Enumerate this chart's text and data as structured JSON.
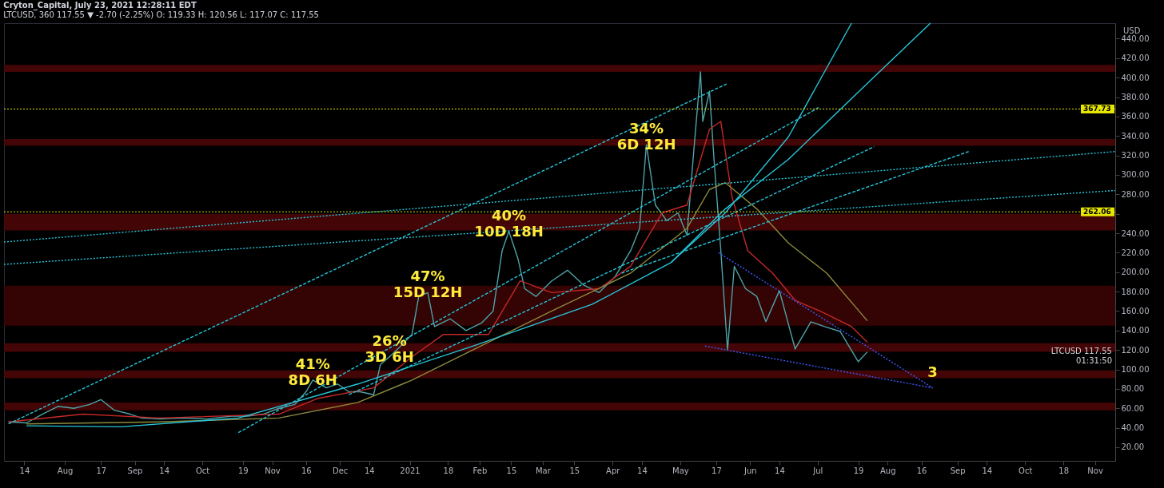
{
  "chart_data": {
    "type": "line",
    "title": "Cryton_Capital, July 23, 2021 12:28:11 EDT",
    "subtitle": "LTCUSD, 360 117.55 ▼ -2.70 (-2.25%) O: 119.33 H: 120.56 L: 117.07 C: 117.55",
    "xlim": [
      "2020-07-05",
      "2021-11-10"
    ],
    "xticks": [
      {
        "value": "2020-07-14",
        "label": "14"
      },
      {
        "value": "2020-08-01",
        "label": "Aug"
      },
      {
        "value": "2020-08-17",
        "label": "17"
      },
      {
        "value": "2020-09-01",
        "label": "Sep"
      },
      {
        "value": "2020-09-14",
        "label": "14"
      },
      {
        "value": "2020-10-01",
        "label": "Oct"
      },
      {
        "value": "2020-10-19",
        "label": "19"
      },
      {
        "value": "2020-11-01",
        "label": "Nov"
      },
      {
        "value": "2020-11-16",
        "label": "16"
      },
      {
        "value": "2020-12-01",
        "label": "Dec"
      },
      {
        "value": "2020-12-14",
        "label": "14"
      },
      {
        "value": "2021-01-01",
        "label": "2021"
      },
      {
        "value": "2021-01-18",
        "label": "18"
      },
      {
        "value": "2021-02-01",
        "label": "Feb"
      },
      {
        "value": "2021-02-15",
        "label": "15"
      },
      {
        "value": "2021-03-01",
        "label": "Mar"
      },
      {
        "value": "2021-03-15",
        "label": "15"
      },
      {
        "value": "2021-04-01",
        "label": "Apr"
      },
      {
        "value": "2021-04-14",
        "label": "14"
      },
      {
        "value": "2021-05-01",
        "label": "May"
      },
      {
        "value": "2021-05-17",
        "label": "17"
      },
      {
        "value": "2021-06-01",
        "label": "Jun"
      },
      {
        "value": "2021-06-14",
        "label": "14"
      },
      {
        "value": "2021-07-01",
        "label": "Jul"
      },
      {
        "value": "2021-07-19",
        "label": "19"
      },
      {
        "value": "2021-08-01",
        "label": "Aug"
      },
      {
        "value": "2021-08-16",
        "label": "16"
      },
      {
        "value": "2021-09-01",
        "label": "Sep"
      },
      {
        "value": "2021-09-14",
        "label": "14"
      },
      {
        "value": "2021-10-01",
        "label": "Oct"
      },
      {
        "value": "2021-10-18",
        "label": "18"
      },
      {
        "value": "2021-11-01",
        "label": "Nov"
      }
    ],
    "ylim": [
      6,
      456
    ],
    "yticks": [
      {
        "value": 20,
        "label": "20.00"
      },
      {
        "value": 40,
        "label": "40.00"
      },
      {
        "value": 60,
        "label": "60.00"
      },
      {
        "value": 80,
        "label": "80.00"
      },
      {
        "value": 100,
        "label": "100.00"
      },
      {
        "value": 120,
        "label": "120.00"
      },
      {
        "value": 140,
        "label": "140.00"
      },
      {
        "value": 160,
        "label": "160.00"
      },
      {
        "value": 180,
        "label": "180.00"
      },
      {
        "value": 200,
        "label": "200.00"
      },
      {
        "value": 220,
        "label": "220.00"
      },
      {
        "value": 240,
        "label": "240.00"
      },
      {
        "value": 260,
        "label": null
      },
      {
        "value": 280,
        "label": "280.00"
      },
      {
        "value": 300,
        "label": "300.00"
      },
      {
        "value": 320,
        "label": "320.00"
      },
      {
        "value": 340,
        "label": "340.00"
      },
      {
        "value": 360,
        "label": "360.00"
      },
      {
        "value": 380,
        "label": "380.00"
      },
      {
        "value": 400,
        "label": "400.00"
      },
      {
        "value": 420,
        "label": "420.00"
      },
      {
        "value": 440,
        "label": "440.00"
      }
    ],
    "bands": [
      {
        "axis": "y",
        "from": 406,
        "to": 413,
        "color": "#4a0505"
      },
      {
        "axis": "y",
        "from": 330,
        "to": 337,
        "color": "#4a0505"
      },
      {
        "axis": "y",
        "from": 243,
        "to": 260,
        "color": "#4a0505"
      },
      {
        "axis": "y",
        "from": 145,
        "to": 186,
        "color": "#3a0303"
      },
      {
        "axis": "y",
        "from": 118,
        "to": 127,
        "color": "#4a0505"
      },
      {
        "axis": "y",
        "from": 91,
        "to": 99,
        "color": "#4a0505"
      },
      {
        "axis": "y",
        "from": 58,
        "to": 66,
        "color": "#4a0505"
      }
    ],
    "ref_lines": [
      {
        "axis": "y",
        "value": 367.73,
        "label": "367.73",
        "color": "#e6e600",
        "line_style": "dotted"
      },
      {
        "axis": "y",
        "value": 262.06,
        "label": "262.06",
        "color": "#e6e600",
        "line_style": "dotted"
      }
    ],
    "series": [
      {
        "type": "line",
        "color": "#4fa3a8",
        "line_style": "solid",
        "x": [
          "2020-07-07",
          "2020-07-15",
          "2020-07-22",
          "2020-07-29",
          "2020-08-05",
          "2020-08-12",
          "2020-08-17",
          "2020-08-23",
          "2020-08-30",
          "2020-09-04",
          "2020-09-12",
          "2020-09-23",
          "2020-10-03",
          "2020-10-14",
          "2020-10-21",
          "2020-10-28",
          "2020-11-04",
          "2020-11-11",
          "2020-11-16",
          "2020-11-19",
          "2020-11-25",
          "2020-11-30",
          "2020-12-05",
          "2020-12-10",
          "2020-12-16",
          "2020-12-19",
          "2020-12-23",
          "2020-12-28",
          "2021-01-02",
          "2021-01-05",
          "2021-01-09",
          "2021-01-12",
          "2021-01-19",
          "2021-01-26",
          "2021-02-02",
          "2021-02-07",
          "2021-02-11",
          "2021-02-14",
          "2021-02-18",
          "2021-02-21",
          "2021-02-26",
          "2021-03-05",
          "2021-03-12",
          "2021-03-19",
          "2021-03-26",
          "2021-04-02",
          "2021-04-09",
          "2021-04-13",
          "2021-04-16",
          "2021-04-20",
          "2021-04-25",
          "2021-04-30",
          "2021-05-04",
          "2021-05-07",
          "2021-05-10",
          "2021-05-11",
          "2021-05-14",
          "2021-05-16",
          "2021-05-19",
          "2021-05-22",
          "2021-05-25",
          "2021-05-30",
          "2021-06-04",
          "2021-06-08",
          "2021-06-14",
          "2021-06-21",
          "2021-06-28",
          "2021-07-04",
          "2021-07-11",
          "2021-07-19",
          "2021-07-23"
        ],
        "values": [
          46,
          45,
          54,
          62,
          60,
          64,
          69,
          58,
          54,
          50,
          49,
          50,
          49,
          52,
          52,
          54,
          60,
          64,
          77,
          89,
          81,
          85,
          77,
          77,
          74,
          105,
          113,
          124,
          136,
          175,
          179,
          144,
          152,
          140,
          148,
          160,
          222,
          242,
          214,
          183,
          175,
          191,
          202,
          187,
          179,
          195,
          222,
          245,
          331,
          269,
          253,
          261,
          238,
          324,
          406,
          355,
          386,
          316,
          223,
          120,
          206,
          183,
          175,
          149,
          181,
          121,
          149,
          144,
          139,
          108,
          118
        ]
      },
      {
        "type": "line",
        "color": "#c62828",
        "line_style": "solid",
        "x": [
          "2020-07-07",
          "2020-08-09",
          "2020-09-12",
          "2020-11-04",
          "2020-11-21",
          "2020-12-16",
          "2021-01-02",
          "2021-01-16",
          "2021-02-05",
          "2021-02-19",
          "2021-03-05",
          "2021-03-26",
          "2021-04-09",
          "2021-04-23",
          "2021-05-04",
          "2021-05-14",
          "2021-05-19",
          "2021-05-24",
          "2021-05-31",
          "2021-06-11",
          "2021-06-21",
          "2021-07-02",
          "2021-07-16",
          "2021-07-23"
        ],
        "values": [
          46,
          54,
          50,
          54,
          70,
          81,
          113,
          136,
          136,
          191,
          179,
          183,
          206,
          261,
          269,
          347,
          355,
          277,
          222,
          199,
          171,
          160,
          144,
          128
        ]
      },
      {
        "type": "line",
        "color": "#8d8a3c",
        "line_style": "solid",
        "x": [
          "2020-07-15",
          "2020-09-12",
          "2020-11-04",
          "2020-12-09",
          "2021-01-02",
          "2021-01-29",
          "2021-03-05",
          "2021-04-09",
          "2021-05-04",
          "2021-05-14",
          "2021-05-21",
          "2021-06-04",
          "2021-06-18",
          "2021-07-05",
          "2021-07-23"
        ],
        "values": [
          44,
          46,
          50,
          66,
          89,
          120,
          160,
          199,
          245,
          285,
          292,
          265,
          230,
          199,
          150
        ]
      },
      {
        "type": "line",
        "color": "#26c6da",
        "line_style": "solid",
        "x": [
          "2020-07-15",
          "2020-08-26",
          "2020-10-17",
          "2020-12-09",
          "2021-01-29",
          "2021-03-23",
          "2021-04-27",
          "2021-05-21",
          "2021-06-18",
          "2021-07-16"
        ],
        "values": [
          42,
          41,
          50,
          85,
          124,
          167,
          210,
          261,
          339,
          456
        ]
      },
      {
        "type": "line",
        "color": "#26c6da",
        "line_style": "solid",
        "x": [
          "2021-04-27",
          "2021-05-21",
          "2021-06-18",
          "2021-07-23",
          "2021-08-20"
        ],
        "values": [
          210,
          265,
          316,
          394,
          456
        ]
      },
      {
        "type": "line",
        "color": "#26c6da",
        "line_style": "dashed",
        "x": [
          "2020-07-07",
          "2021-05-22"
        ],
        "values": [
          44,
          394
        ]
      },
      {
        "type": "line",
        "color": "#26c6da",
        "line_style": "dashed",
        "x": [
          "2020-10-17",
          "2021-07-02"
        ],
        "values": [
          35,
          370
        ]
      },
      {
        "type": "line",
        "color": "#26c6da",
        "line_style": "dashed",
        "x": [
          "2020-12-05",
          "2021-07-26"
        ],
        "values": [
          74,
          329
        ]
      },
      {
        "type": "line",
        "color": "#26c6da",
        "line_style": "dashed",
        "x": [
          "2021-04-05",
          "2021-09-06"
        ],
        "values": [
          199,
          324
        ]
      },
      {
        "type": "line",
        "color": "#26c6da",
        "line_style": "dotted",
        "x": [
          "2020-07-05",
          "2021-11-10"
        ],
        "values": [
          231,
          324
        ]
      },
      {
        "type": "line",
        "color": "#26c6da",
        "line_style": "dotted",
        "x": [
          "2020-07-05",
          "2021-11-10"
        ],
        "values": [
          208,
          284
        ]
      },
      {
        "type": "line",
        "color": "#3d5afe",
        "line_style": "dotted",
        "x": [
          "2021-05-18",
          "2021-08-21"
        ],
        "values": [
          220,
          81
        ]
      },
      {
        "type": "line",
        "color": "#3d5afe",
        "line_style": "dotted",
        "x": [
          "2021-05-12",
          "2021-08-21"
        ],
        "values": [
          124,
          81
        ]
      }
    ],
    "annotations": [
      {
        "text": "41%\n8D 6H",
        "x": "2020-11-19",
        "y": 89
      },
      {
        "text": "26%\n3D 6H",
        "x": "2020-12-23",
        "y": 113
      },
      {
        "text": "47%\n15D 12H",
        "x": "2021-01-09",
        "y": 179
      },
      {
        "text": "40%\n10D 18H",
        "x": "2021-02-14",
        "y": 242
      },
      {
        "text": "34%\n6D 12H",
        "x": "2021-04-16",
        "y": 331
      },
      {
        "text": "3",
        "x": "2021-08-21",
        "y": 81
      },
      {
        "text": "LTCUSD 117.55\n01:31:50",
        "y": 117.55
      },
      "USD"
    ]
  }
}
